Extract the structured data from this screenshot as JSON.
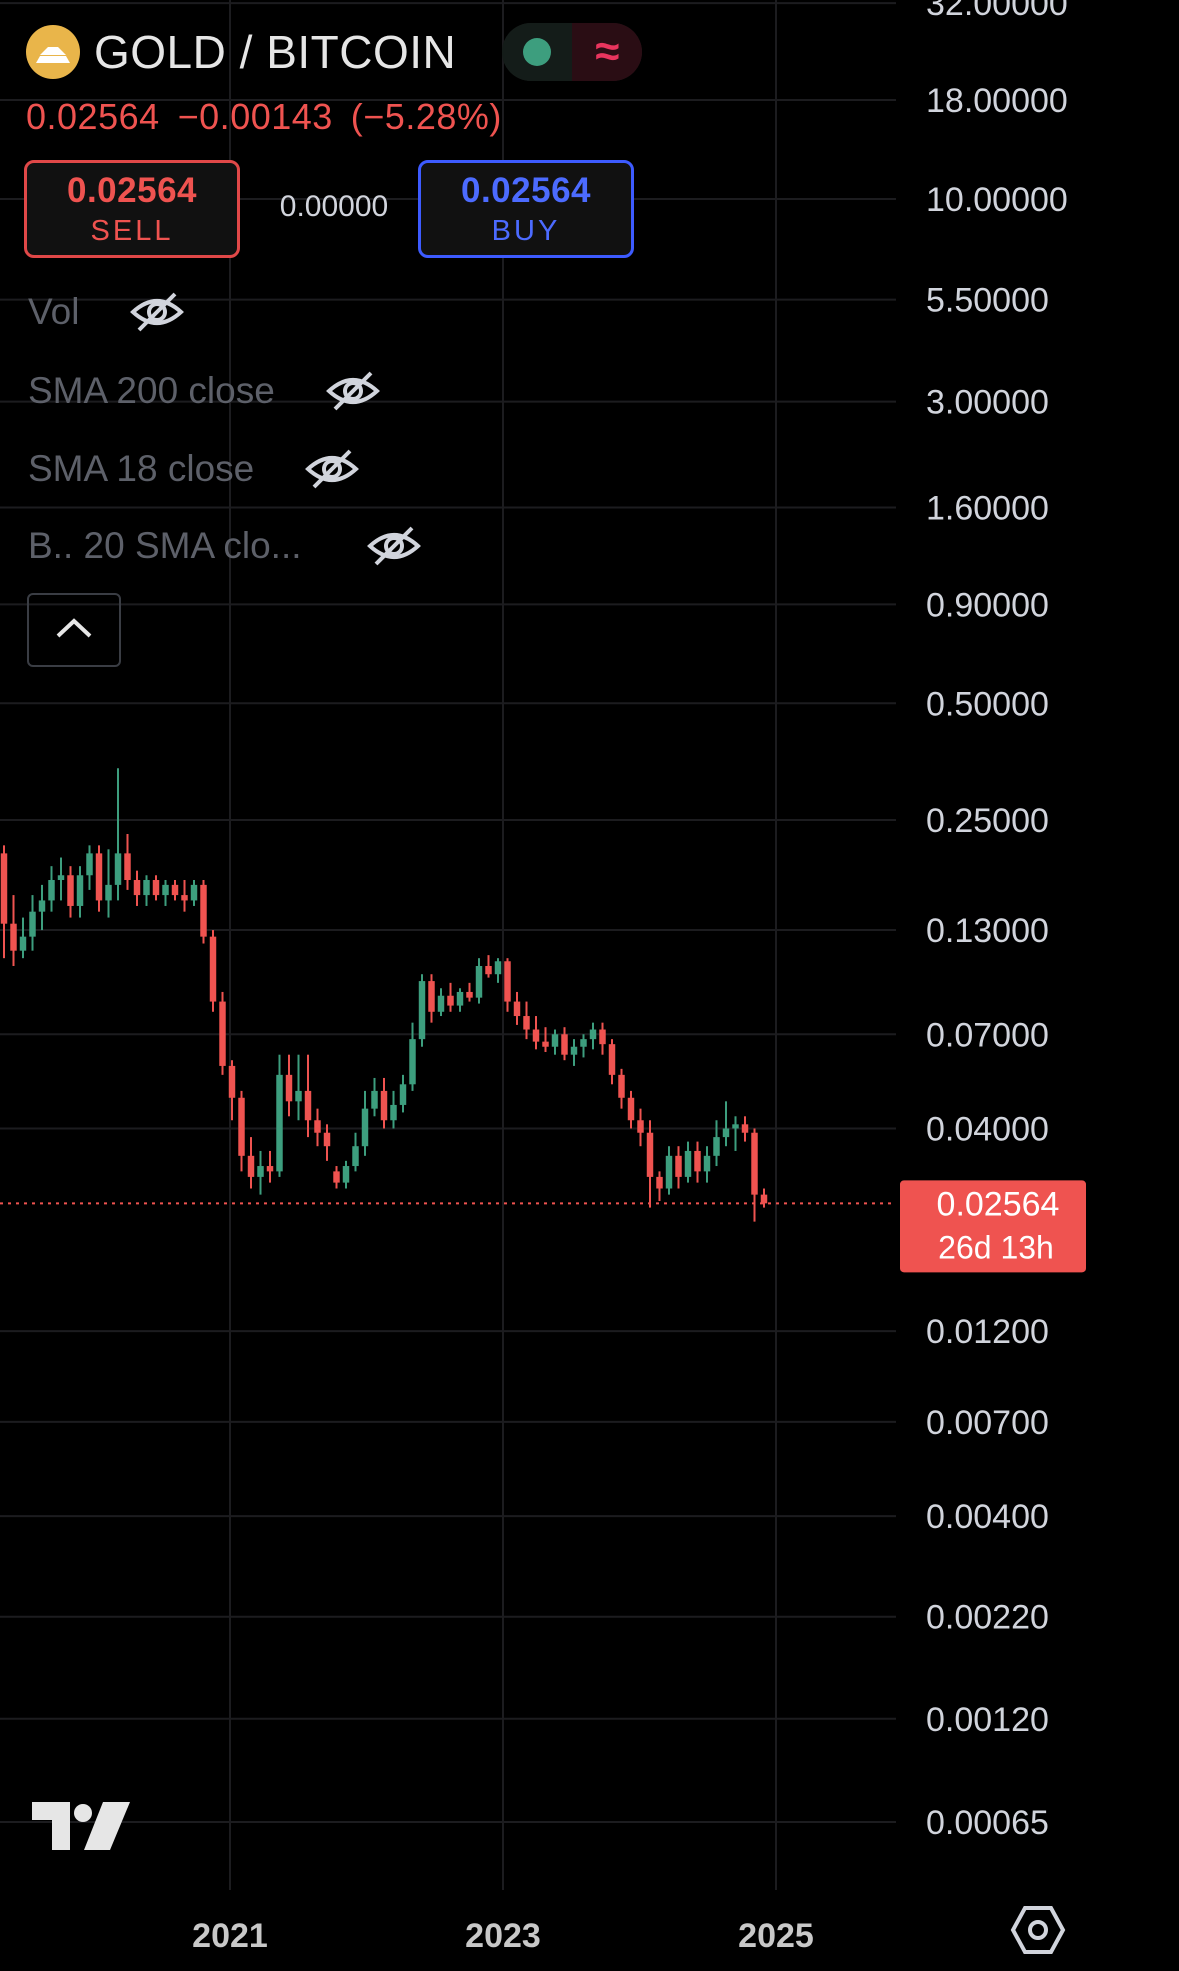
{
  "header": {
    "symbol": "GOLD / BITCOIN",
    "last_price": "0.02564",
    "change": "−0.00143",
    "change_pct": "(−5.28%)",
    "market_status_icon": "green-dot-icon",
    "data_icon": "wave-icon"
  },
  "trade": {
    "sell_price": "0.02564",
    "sell_label": "SELL",
    "spread": "0.00000",
    "buy_price": "0.02564",
    "buy_label": "BUY"
  },
  "indicators": [
    {
      "label": "Vol",
      "visibility_icon": "eye-off-icon"
    },
    {
      "label": "SMA 200 close",
      "visibility_icon": "eye-off-icon"
    },
    {
      "label": "SMA 18 close",
      "visibility_icon": "eye-off-icon"
    },
    {
      "label": "B.. 20 SMA clo...",
      "visibility_icon": "eye-off-icon"
    }
  ],
  "colors": {
    "up": "#3d9e7e",
    "down": "#ef5350",
    "sell_border": "#e04848",
    "buy": "#4c6bff",
    "grid": "#1c1c1f",
    "axis_text": "#d1d4dc"
  },
  "chart_data": {
    "type": "candlestick",
    "y_scale": "log",
    "ylim": [
      0.00055,
      33
    ],
    "y_ticks": [
      "32.00000",
      "18.00000",
      "10.00000",
      "5.50000",
      "3.00000",
      "1.60000",
      "0.90000",
      "0.50000",
      "0.25000",
      "0.13000",
      "0.07000",
      "0.04000",
      "0.01200",
      "0.00700",
      "0.00400",
      "0.00220",
      "0.00120",
      "0.00065"
    ],
    "x_ticks": [
      "2021",
      "2023",
      "2025"
    ],
    "grid": true,
    "last_price_label": "0.02564",
    "countdown_label": "26d 13h",
    "candles": [
      {
        "o": 0.205,
        "h": 0.215,
        "l": 0.11,
        "c": 0.135
      },
      {
        "o": 0.135,
        "h": 0.16,
        "l": 0.105,
        "c": 0.115
      },
      {
        "o": 0.115,
        "h": 0.14,
        "l": 0.11,
        "c": 0.125
      },
      {
        "o": 0.125,
        "h": 0.16,
        "l": 0.115,
        "c": 0.145
      },
      {
        "o": 0.145,
        "h": 0.17,
        "l": 0.13,
        "c": 0.155
      },
      {
        "o": 0.155,
        "h": 0.19,
        "l": 0.145,
        "c": 0.175
      },
      {
        "o": 0.175,
        "h": 0.2,
        "l": 0.155,
        "c": 0.18
      },
      {
        "o": 0.18,
        "h": 0.19,
        "l": 0.14,
        "c": 0.15
      },
      {
        "o": 0.15,
        "h": 0.19,
        "l": 0.14,
        "c": 0.18
      },
      {
        "o": 0.18,
        "h": 0.215,
        "l": 0.165,
        "c": 0.205
      },
      {
        "o": 0.205,
        "h": 0.215,
        "l": 0.145,
        "c": 0.155
      },
      {
        "o": 0.155,
        "h": 0.21,
        "l": 0.14,
        "c": 0.17
      },
      {
        "o": 0.17,
        "h": 0.34,
        "l": 0.155,
        "c": 0.205
      },
      {
        "o": 0.205,
        "h": 0.23,
        "l": 0.165,
        "c": 0.175
      },
      {
        "o": 0.175,
        "h": 0.185,
        "l": 0.15,
        "c": 0.16
      },
      {
        "o": 0.16,
        "h": 0.18,
        "l": 0.15,
        "c": 0.175
      },
      {
        "o": 0.175,
        "h": 0.18,
        "l": 0.155,
        "c": 0.16
      },
      {
        "o": 0.16,
        "h": 0.175,
        "l": 0.15,
        "c": 0.17
      },
      {
        "o": 0.17,
        "h": 0.175,
        "l": 0.155,
        "c": 0.16
      },
      {
        "o": 0.16,
        "h": 0.175,
        "l": 0.145,
        "c": 0.155
      },
      {
        "o": 0.155,
        "h": 0.175,
        "l": 0.15,
        "c": 0.17
      },
      {
        "o": 0.17,
        "h": 0.175,
        "l": 0.12,
        "c": 0.125
      },
      {
        "o": 0.125,
        "h": 0.13,
        "l": 0.08,
        "c": 0.085
      },
      {
        "o": 0.085,
        "h": 0.09,
        "l": 0.055,
        "c": 0.058
      },
      {
        "o": 0.058,
        "h": 0.06,
        "l": 0.042,
        "c": 0.048
      },
      {
        "o": 0.048,
        "h": 0.05,
        "l": 0.031,
        "c": 0.034
      },
      {
        "o": 0.034,
        "h": 0.038,
        "l": 0.028,
        "c": 0.03
      },
      {
        "o": 0.03,
        "h": 0.035,
        "l": 0.027,
        "c": 0.032
      },
      {
        "o": 0.032,
        "h": 0.035,
        "l": 0.029,
        "c": 0.031
      },
      {
        "o": 0.031,
        "h": 0.062,
        "l": 0.03,
        "c": 0.055
      },
      {
        "o": 0.055,
        "h": 0.062,
        "l": 0.043,
        "c": 0.047
      },
      {
        "o": 0.047,
        "h": 0.062,
        "l": 0.042,
        "c": 0.05
      },
      {
        "o": 0.05,
        "h": 0.062,
        "l": 0.038,
        "c": 0.042
      },
      {
        "o": 0.042,
        "h": 0.045,
        "l": 0.036,
        "c": 0.039
      },
      {
        "o": 0.039,
        "h": 0.041,
        "l": 0.033,
        "c": 0.036
      },
      {
        "o": 0.031,
        "h": 0.032,
        "l": 0.028,
        "c": 0.029
      },
      {
        "o": 0.029,
        "h": 0.033,
        "l": 0.028,
        "c": 0.032
      },
      {
        "o": 0.032,
        "h": 0.039,
        "l": 0.031,
        "c": 0.036
      },
      {
        "o": 0.036,
        "h": 0.05,
        "l": 0.034,
        "c": 0.045
      },
      {
        "o": 0.045,
        "h": 0.054,
        "l": 0.043,
        "c": 0.05
      },
      {
        "o": 0.05,
        "h": 0.054,
        "l": 0.04,
        "c": 0.042
      },
      {
        "o": 0.042,
        "h": 0.05,
        "l": 0.04,
        "c": 0.046
      },
      {
        "o": 0.046,
        "h": 0.055,
        "l": 0.044,
        "c": 0.052
      },
      {
        "o": 0.052,
        "h": 0.075,
        "l": 0.05,
        "c": 0.068
      },
      {
        "o": 0.068,
        "h": 0.1,
        "l": 0.065,
        "c": 0.096
      },
      {
        "o": 0.096,
        "h": 0.1,
        "l": 0.075,
        "c": 0.08
      },
      {
        "o": 0.08,
        "h": 0.092,
        "l": 0.078,
        "c": 0.088
      },
      {
        "o": 0.088,
        "h": 0.095,
        "l": 0.08,
        "c": 0.083
      },
      {
        "o": 0.083,
        "h": 0.092,
        "l": 0.08,
        "c": 0.09
      },
      {
        "o": 0.09,
        "h": 0.095,
        "l": 0.085,
        "c": 0.087
      },
      {
        "o": 0.087,
        "h": 0.11,
        "l": 0.084,
        "c": 0.105
      },
      {
        "o": 0.105,
        "h": 0.112,
        "l": 0.098,
        "c": 0.1
      },
      {
        "o": 0.1,
        "h": 0.11,
        "l": 0.095,
        "c": 0.108
      },
      {
        "o": 0.108,
        "h": 0.11,
        "l": 0.08,
        "c": 0.085
      },
      {
        "o": 0.085,
        "h": 0.09,
        "l": 0.074,
        "c": 0.078
      },
      {
        "o": 0.078,
        "h": 0.085,
        "l": 0.068,
        "c": 0.072
      },
      {
        "o": 0.072,
        "h": 0.078,
        "l": 0.064,
        "c": 0.067
      },
      {
        "o": 0.067,
        "h": 0.073,
        "l": 0.063,
        "c": 0.065
      },
      {
        "o": 0.065,
        "h": 0.072,
        "l": 0.062,
        "c": 0.07
      },
      {
        "o": 0.07,
        "h": 0.073,
        "l": 0.06,
        "c": 0.062
      },
      {
        "o": 0.062,
        "h": 0.068,
        "l": 0.058,
        "c": 0.065
      },
      {
        "o": 0.065,
        "h": 0.07,
        "l": 0.061,
        "c": 0.068
      },
      {
        "o": 0.068,
        "h": 0.075,
        "l": 0.064,
        "c": 0.072
      },
      {
        "o": 0.072,
        "h": 0.075,
        "l": 0.062,
        "c": 0.066
      },
      {
        "o": 0.066,
        "h": 0.068,
        "l": 0.052,
        "c": 0.055
      },
      {
        "o": 0.055,
        "h": 0.057,
        "l": 0.045,
        "c": 0.048
      },
      {
        "o": 0.048,
        "h": 0.05,
        "l": 0.04,
        "c": 0.042
      },
      {
        "o": 0.042,
        "h": 0.045,
        "l": 0.036,
        "c": 0.039
      },
      {
        "o": 0.039,
        "h": 0.042,
        "l": 0.025,
        "c": 0.03
      },
      {
        "o": 0.03,
        "h": 0.031,
        "l": 0.026,
        "c": 0.028
      },
      {
        "o": 0.028,
        "h": 0.036,
        "l": 0.027,
        "c": 0.034
      },
      {
        "o": 0.034,
        "h": 0.036,
        "l": 0.028,
        "c": 0.03
      },
      {
        "o": 0.03,
        "h": 0.037,
        "l": 0.029,
        "c": 0.035
      },
      {
        "o": 0.035,
        "h": 0.037,
        "l": 0.029,
        "c": 0.031
      },
      {
        "o": 0.031,
        "h": 0.036,
        "l": 0.029,
        "c": 0.034
      },
      {
        "o": 0.034,
        "h": 0.042,
        "l": 0.032,
        "c": 0.038
      },
      {
        "o": 0.038,
        "h": 0.047,
        "l": 0.036,
        "c": 0.04
      },
      {
        "o": 0.04,
        "h": 0.043,
        "l": 0.035,
        "c": 0.041
      },
      {
        "o": 0.041,
        "h": 0.043,
        "l": 0.037,
        "c": 0.039
      },
      {
        "o": 0.039,
        "h": 0.04,
        "l": 0.023,
        "c": 0.027
      },
      {
        "o": 0.027,
        "h": 0.028,
        "l": 0.025,
        "c": 0.02564
      }
    ]
  },
  "footer": {
    "logo_icon": "tradingview-logo",
    "settings_icon": "gear-hex-icon"
  }
}
